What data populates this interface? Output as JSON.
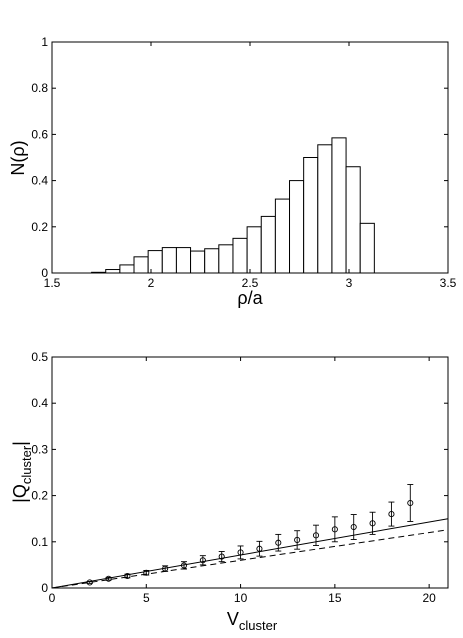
{
  "chart_data": [
    {
      "type": "bar",
      "title": "",
      "xlabel": "ρ/a",
      "ylabel": "N(ρ)",
      "xlim": [
        1.5,
        3.5
      ],
      "ylim": [
        0,
        1
      ],
      "x_ticks": [
        1.5,
        2,
        2.5,
        3,
        3.5
      ],
      "x_tick_labels": [
        "1.5",
        "2",
        "2.5",
        "3",
        "3.5"
      ],
      "y_ticks": [
        0,
        0.2,
        0.4,
        0.6,
        0.8,
        1
      ],
      "y_tick_labels": [
        "0",
        "0.2",
        "0.4",
        "0.6",
        "0.8",
        "1"
      ],
      "grid": false,
      "bin_width": 0.0714,
      "bin_start": 1.7,
      "values": [
        0.003,
        0.015,
        0.035,
        0.07,
        0.097,
        0.11,
        0.11,
        0.095,
        0.105,
        0.122,
        0.15,
        0.2,
        0.245,
        0.32,
        0.4,
        0.5,
        0.555,
        0.585,
        0.46,
        0.215
      ]
    },
    {
      "type": "scatter",
      "title": "",
      "xlabel": "V",
      "xlabel_sub": "cluster",
      "ylabel": "|Q",
      "ylabel_sub": "cluster",
      "ylabel_end": "|",
      "xlim": [
        0,
        21
      ],
      "ylim": [
        0,
        0.5
      ],
      "x_ticks": [
        0,
        5,
        10,
        15,
        20
      ],
      "x_tick_labels": [
        "0",
        "5",
        "10",
        "15",
        "20"
      ],
      "y_ticks": [
        0,
        0.1,
        0.2,
        0.3,
        0.4,
        0.5
      ],
      "y_tick_labels": [
        "0",
        "0.1",
        "0.2",
        "0.3",
        "0.4",
        "0.5"
      ],
      "grid": false,
      "points": {
        "x": [
          2,
          3,
          4,
          5,
          6,
          7,
          8,
          9,
          10,
          11,
          12,
          13,
          14,
          15,
          16,
          17,
          18,
          19
        ],
        "y": [
          0.012,
          0.02,
          0.026,
          0.033,
          0.042,
          0.049,
          0.06,
          0.068,
          0.077,
          0.085,
          0.098,
          0.104,
          0.114,
          0.127,
          0.132,
          0.14,
          0.16,
          0.184
        ],
        "err": [
          0.002,
          0.003,
          0.004,
          0.005,
          0.006,
          0.008,
          0.01,
          0.011,
          0.014,
          0.016,
          0.018,
          0.02,
          0.022,
          0.027,
          0.027,
          0.024,
          0.026,
          0.04
        ]
      },
      "lines": [
        {
          "style": "solid",
          "x": [
            0,
            21
          ],
          "y": [
            0,
            0.15
          ]
        },
        {
          "style": "dashed",
          "x": [
            0,
            21
          ],
          "y": [
            0,
            0.126
          ]
        }
      ]
    }
  ]
}
